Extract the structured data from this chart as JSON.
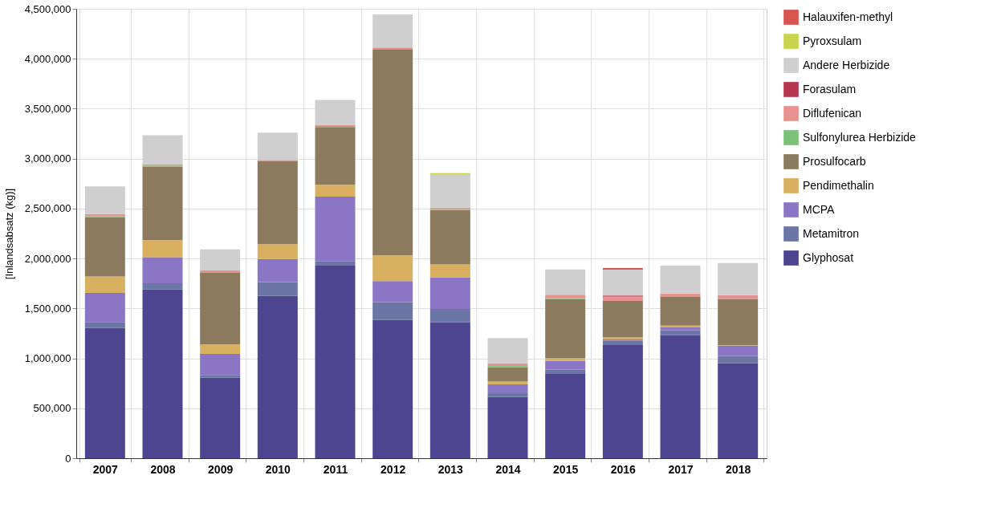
{
  "chart_data": {
    "type": "bar",
    "stacked": true,
    "ylabel": "[Inlandsabsatz (kg)]",
    "categories": [
      "2007",
      "2008",
      "2009",
      "2010",
      "2011",
      "2012",
      "2013",
      "2014",
      "2015",
      "2016",
      "2017",
      "2018"
    ],
    "series": [
      {
        "name": "Glyphosat",
        "color": "#4e4590",
        "values": [
          1305000,
          1690000,
          805000,
          1626000,
          1935000,
          1385000,
          1362000,
          613000,
          843000,
          1134000,
          1233000,
          950000
        ]
      },
      {
        "name": "Metamitron",
        "color": "#6b76a6",
        "values": [
          60000,
          62000,
          28000,
          137000,
          40000,
          177000,
          132000,
          38000,
          43000,
          43000,
          46000,
          75000
        ]
      },
      {
        "name": "MCPA",
        "color": "#8a76c4",
        "values": [
          290000,
          260000,
          212000,
          232000,
          645000,
          211000,
          318000,
          88000,
          89000,
          13000,
          30000,
          102000
        ]
      },
      {
        "name": "Pendimethalin",
        "color": "#d9b060",
        "values": [
          165000,
          171000,
          97000,
          149000,
          118000,
          259000,
          129000,
          28000,
          25000,
          20000,
          18000,
          5000
        ]
      },
      {
        "name": "Prosulfocarb",
        "color": "#8b7a5e",
        "values": [
          595000,
          738000,
          714000,
          833000,
          579000,
          2065000,
          544000,
          145000,
          595000,
          365000,
          288000,
          463000
        ]
      },
      {
        "name": "Sulfonylurea Herbizide",
        "color": "#7cc17a",
        "values": [
          10000,
          10000,
          0,
          0,
          10000,
          0,
          10000,
          13000,
          10000,
          0,
          0,
          0
        ]
      },
      {
        "name": "Diflufenican",
        "color": "#e8928f",
        "values": [
          20000,
          15000,
          25000,
          10000,
          11000,
          15000,
          15000,
          25000,
          33000,
          45000,
          35000,
          38000
        ]
      },
      {
        "name": "Forasulam",
        "color": "#b8354f",
        "values": [
          0,
          0,
          0,
          0,
          0,
          0,
          0,
          0,
          0,
          10000,
          0,
          0
        ]
      },
      {
        "name": "Andere Herbizide",
        "color": "#cfcfcf",
        "values": [
          277000,
          288000,
          210000,
          273000,
          250000,
          332000,
          329000,
          253000,
          253000,
          259000,
          278000,
          322000
        ]
      },
      {
        "name": "Pyroxsulam",
        "color": "#c8d44e",
        "values": [
          0,
          0,
          0,
          0,
          0,
          0,
          15000,
          0,
          0,
          0,
          0,
          0
        ]
      },
      {
        "name": "Halauxifen-methyl",
        "color": "#d9534f",
        "values": [
          0,
          0,
          0,
          0,
          0,
          0,
          0,
          0,
          0,
          15000,
          0,
          0
        ]
      }
    ],
    "ylim": [
      0,
      4500000
    ],
    "yticks": [
      {
        "value": 0,
        "label": "0"
      },
      {
        "value": 500000,
        "label": "500,000"
      },
      {
        "value": 1000000,
        "label": "1,000,000"
      },
      {
        "value": 1500000,
        "label": "1,500,000"
      },
      {
        "value": 2000000,
        "label": "2,000,000"
      },
      {
        "value": 2500000,
        "label": "2,500,000"
      },
      {
        "value": 3000000,
        "label": "3,000,000"
      },
      {
        "value": 3500000,
        "label": "3,500,000"
      },
      {
        "value": 4000000,
        "label": "4,000,000"
      },
      {
        "value": 4500000,
        "label": "4,500,000"
      }
    ],
    "grid": true,
    "legend": "right"
  }
}
